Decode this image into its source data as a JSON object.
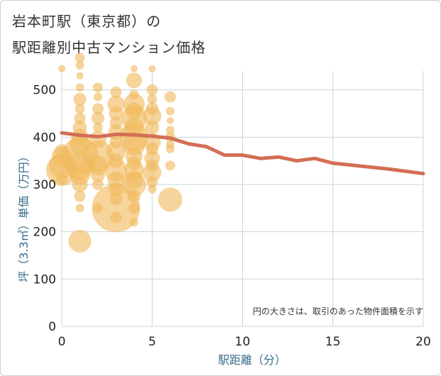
{
  "title_line1": "岩本町駅（東京都）の",
  "title_line2": "駅距離別中古マンション価格",
  "chart_data": {
    "type": "scatter",
    "xlabel": "駅距離（分）",
    "ylabel": "坪（3.3㎡）単価（万円）",
    "xlim": [
      0,
      20
    ],
    "ylim": [
      0,
      540
    ],
    "x_ticks": [
      0,
      5,
      10,
      15,
      20
    ],
    "y_ticks": [
      0,
      100,
      200,
      300,
      400,
      500
    ],
    "note": "円の大きさは、取引のあった物件面積を示す",
    "colors": {
      "bubble": "#f0b95e",
      "line": "#d36e55",
      "grid": "#c8d4dc",
      "axis_text": "#3a6d8c"
    },
    "trend_line": {
      "x": [
        0,
        1,
        2,
        3,
        4,
        5,
        6,
        7,
        8,
        9,
        10,
        11,
        12,
        13,
        14,
        15,
        16,
        17,
        18,
        19,
        20
      ],
      "y": [
        409,
        404,
        401,
        406,
        405,
        402,
        398,
        386,
        380,
        362,
        362,
        355,
        358,
        350,
        355,
        345,
        341,
        337,
        333,
        328,
        323
      ]
    },
    "bubbles": [
      [
        0,
        545,
        5
      ],
      [
        0,
        310,
        8
      ],
      [
        0,
        360,
        14
      ],
      [
        0,
        340,
        18
      ],
      [
        0,
        330,
        22
      ],
      [
        0,
        370,
        10
      ],
      [
        1,
        568,
        7
      ],
      [
        1,
        552,
        6
      ],
      [
        1,
        530,
        5
      ],
      [
        1,
        505,
        6
      ],
      [
        1,
        480,
        9
      ],
      [
        1,
        460,
        7
      ],
      [
        1,
        440,
        8
      ],
      [
        1,
        420,
        10
      ],
      [
        1,
        400,
        12
      ],
      [
        1,
        385,
        15
      ],
      [
        1,
        360,
        26
      ],
      [
        1,
        340,
        20
      ],
      [
        1,
        320,
        14
      ],
      [
        1,
        300,
        11
      ],
      [
        1,
        275,
        8
      ],
      [
        1,
        250,
        6
      ],
      [
        1,
        180,
        16
      ],
      [
        2,
        505,
        7
      ],
      [
        2,
        485,
        6
      ],
      [
        2,
        460,
        8
      ],
      [
        2,
        440,
        9
      ],
      [
        2,
        420,
        7
      ],
      [
        2,
        395,
        12
      ],
      [
        2,
        360,
        22
      ],
      [
        2,
        340,
        14
      ],
      [
        2,
        320,
        10
      ],
      [
        2,
        300,
        8
      ],
      [
        2,
        250,
        7
      ],
      [
        3,
        495,
        8
      ],
      [
        3,
        470,
        12
      ],
      [
        3,
        450,
        10
      ],
      [
        3,
        430,
        9
      ],
      [
        3,
        410,
        11
      ],
      [
        3,
        390,
        9
      ],
      [
        3,
        370,
        14
      ],
      [
        3,
        350,
        10
      ],
      [
        3,
        330,
        16
      ],
      [
        3,
        310,
        12
      ],
      [
        3,
        290,
        10
      ],
      [
        3,
        270,
        9
      ],
      [
        3,
        250,
        34
      ],
      [
        3,
        230,
        8
      ],
      [
        4,
        545,
        5
      ],
      [
        4,
        520,
        11
      ],
      [
        4,
        490,
        7
      ],
      [
        4,
        470,
        15
      ],
      [
        4,
        455,
        12
      ],
      [
        4,
        440,
        18
      ],
      [
        4,
        420,
        14
      ],
      [
        4,
        400,
        20
      ],
      [
        4,
        385,
        16
      ],
      [
        4,
        360,
        12
      ],
      [
        4,
        345,
        10
      ],
      [
        4,
        330,
        14
      ],
      [
        4,
        310,
        13
      ],
      [
        4,
        300,
        17
      ],
      [
        4,
        275,
        9
      ],
      [
        4,
        250,
        8
      ],
      [
        4,
        220,
        6
      ],
      [
        5,
        545,
        5
      ],
      [
        5,
        500,
        8
      ],
      [
        5,
        480,
        7
      ],
      [
        5,
        460,
        9
      ],
      [
        5,
        445,
        13
      ],
      [
        5,
        420,
        10
      ],
      [
        5,
        390,
        12
      ],
      [
        5,
        375,
        9
      ],
      [
        5,
        355,
        11
      ],
      [
        5,
        340,
        9
      ],
      [
        5,
        325,
        13
      ],
      [
        5,
        305,
        8
      ],
      [
        5,
        290,
        6
      ],
      [
        6,
        485,
        8
      ],
      [
        6,
        455,
        6
      ],
      [
        6,
        435,
        5
      ],
      [
        6,
        415,
        6
      ],
      [
        6,
        400,
        7
      ],
      [
        6,
        385,
        6
      ],
      [
        6,
        375,
        6
      ],
      [
        6,
        340,
        7
      ],
      [
        6,
        268,
        17
      ]
    ]
  }
}
